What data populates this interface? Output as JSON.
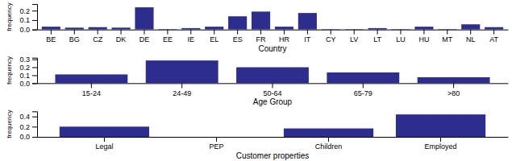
{
  "chart_data": [
    {
      "type": "bar",
      "color": "#2d2d8e",
      "categories": [
        "BE",
        "BG",
        "CZ",
        "DK",
        "DE",
        "EE",
        "IE",
        "EL",
        "ES",
        "FR",
        "HR",
        "IT",
        "CY",
        "LV",
        "LT",
        "LU",
        "HU",
        "MT",
        "NL",
        "AT"
      ],
      "values": [
        0.03,
        0.02,
        0.025,
        0.02,
        0.235,
        0.005,
        0.015,
        0.03,
        0.14,
        0.19,
        0.03,
        0.175,
        0.005,
        0.005,
        0.015,
        0.005,
        0.03,
        0.005,
        0.055,
        0.025
      ],
      "y_label": "frequency",
      "x_label": "Country",
      "ylim": [
        0,
        0.27
      ],
      "yticks": [
        {
          "value": 0,
          "label": "0.0"
        },
        0.1,
        0.2
      ]
    },
    {
      "type": "bar",
      "color": "#2d2d8e",
      "categories": [
        "15-24",
        "24-49",
        "50-64",
        "65-79",
        ">80"
      ],
      "values": [
        0.11,
        0.285,
        0.2,
        0.135,
        0.075
      ],
      "y_label": "frequency",
      "x_label": "Age Group",
      "ylim": [
        0,
        0.32
      ],
      "yticks": [
        {
          "value": 0,
          "label": "0.0"
        },
        0.1,
        0.2,
        0.3
      ]
    },
    {
      "type": "bar",
      "color": "#2d2d8e",
      "categories": [
        "Legal",
        "PEP",
        "Children",
        "Employed"
      ],
      "values": [
        0.2,
        0.0,
        0.165,
        0.44
      ],
      "y_label": "frequency",
      "x_label": "Customer properties",
      "ylim": [
        0,
        0.5
      ],
      "yticks": [
        {
          "value": 0,
          "label": "0.0"
        },
        0.2,
        0.4
      ]
    }
  ]
}
